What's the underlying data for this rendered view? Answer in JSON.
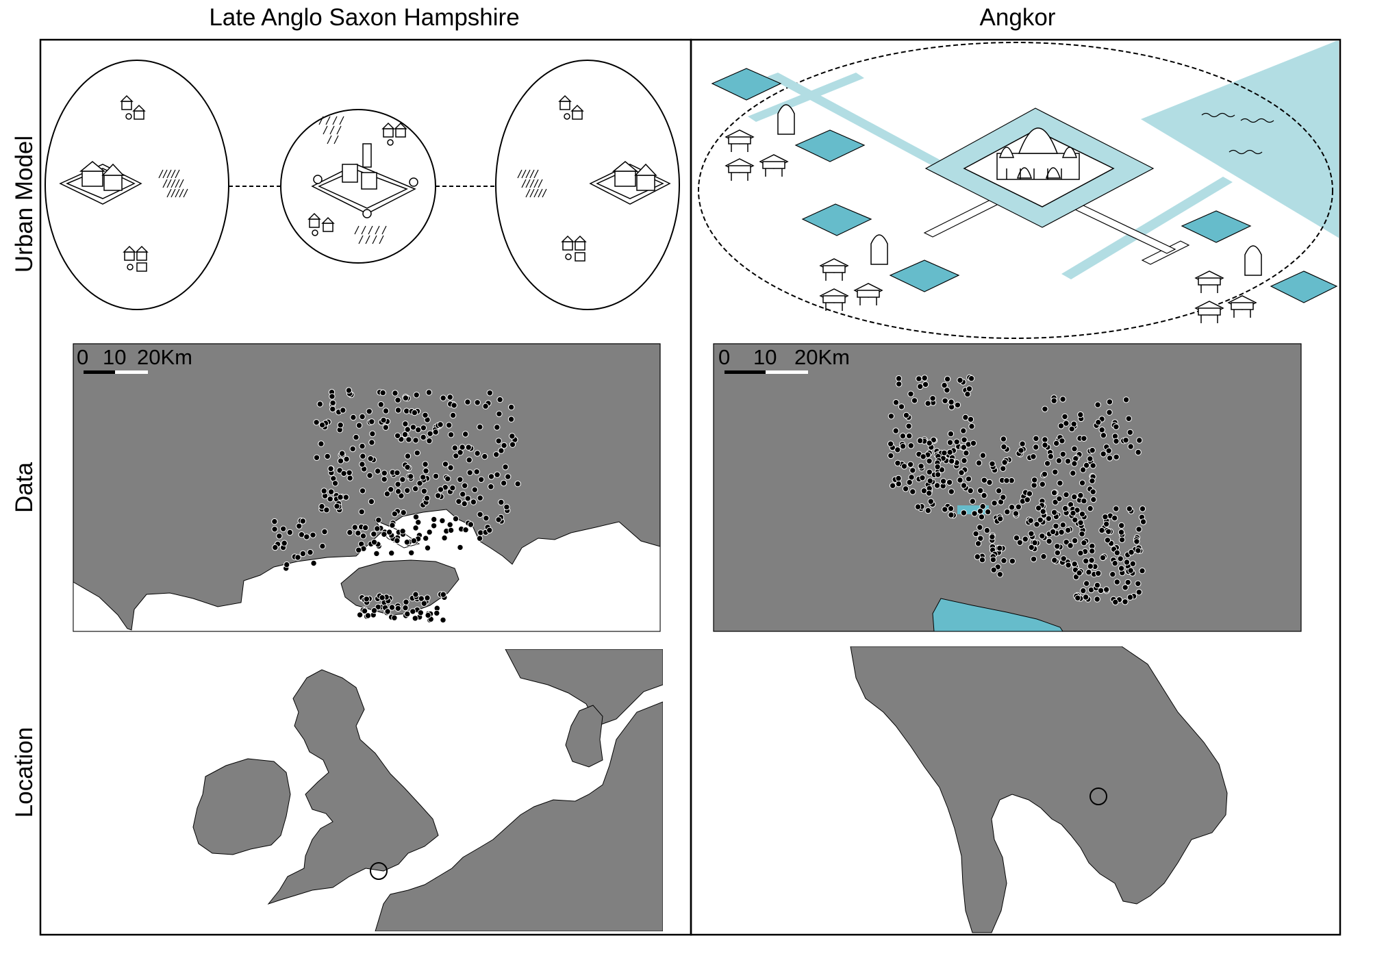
{
  "columns": [
    {
      "title": "Late Anglo Saxon Hampshire"
    },
    {
      "title": "Angkor"
    }
  ],
  "rows": [
    {
      "label": "Urban Model"
    },
    {
      "label": "Data"
    },
    {
      "label": "Location"
    }
  ],
  "scale_bar": {
    "ticks": [
      "0",
      "10",
      "20Km"
    ]
  },
  "colors": {
    "land": "#808080",
    "water_light": "#b2dde3",
    "water_dark": "#66bccb",
    "point": "#000000",
    "outline": "#000000"
  }
}
